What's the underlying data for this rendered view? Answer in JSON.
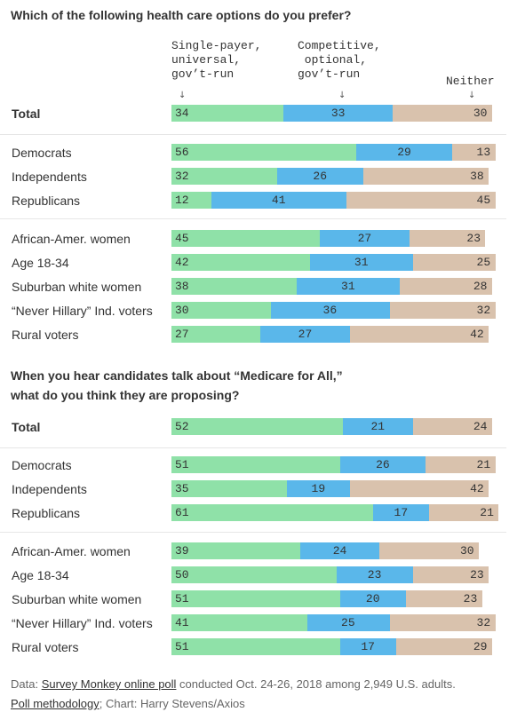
{
  "colors": {
    "single": "#8fe1a8",
    "competitive": "#5ab7ea",
    "neither": "#d9c2ad"
  },
  "headers": {
    "single": "Single-payer,\nuniversal,\ngov’t-run",
    "competitive": "Competitive,\n optional,\ngov’t-run",
    "neither": "Neither"
  },
  "footer": {
    "data_prefix": "Data: ",
    "data_link": "Survey Monkey online poll",
    "data_rest": " conducted Oct. 24-26, 2018 among 2,949 U.S. adults.",
    "methodology_link": "Poll methodology",
    "credit": "; Chart: Harry Stevens/Axios"
  },
  "chart_data": [
    {
      "type": "bar",
      "stacked": true,
      "orientation": "horizontal",
      "title": "Which of the following health care options do you prefer?",
      "series_names": [
        "Single-payer, universal, gov’t-run",
        "Competitive, optional, gov’t-run",
        "Neither"
      ],
      "groups": [
        {
          "rows": [
            {
              "label": "Total",
              "values": [
                34,
                33,
                30
              ],
              "bold": true
            }
          ]
        },
        {
          "rows": [
            {
              "label": "Democrats",
              "values": [
                56,
                29,
                13
              ]
            },
            {
              "label": "Independents",
              "values": [
                32,
                26,
                38
              ]
            },
            {
              "label": "Republicans",
              "values": [
                12,
                41,
                45
              ]
            }
          ]
        },
        {
          "rows": [
            {
              "label": "African-Amer. women",
              "values": [
                45,
                27,
                23
              ]
            },
            {
              "label": "Age 18-34",
              "values": [
                42,
                31,
                25
              ]
            },
            {
              "label": "Suburban white women",
              "values": [
                38,
                31,
                28
              ]
            },
            {
              "label": "“Never Hillary” Ind. voters",
              "values": [
                30,
                36,
                32
              ]
            },
            {
              "label": "Rural voters",
              "values": [
                27,
                27,
                42
              ]
            }
          ]
        }
      ]
    },
    {
      "type": "bar",
      "stacked": true,
      "orientation": "horizontal",
      "title": "When you hear candidates talk about “Medicare for All,”\nwhat do you think they are proposing?",
      "groups": [
        {
          "rows": [
            {
              "label": "Total",
              "values": [
                52,
                21,
                24
              ],
              "bold": true
            }
          ]
        },
        {
          "rows": [
            {
              "label": "Democrats",
              "values": [
                51,
                26,
                21
              ]
            },
            {
              "label": "Independents",
              "values": [
                35,
                19,
                42
              ]
            },
            {
              "label": "Republicans",
              "values": [
                61,
                17,
                21
              ]
            }
          ]
        },
        {
          "rows": [
            {
              "label": "African-Amer. women",
              "values": [
                39,
                24,
                30
              ]
            },
            {
              "label": "Age 18-34",
              "values": [
                50,
                23,
                23
              ]
            },
            {
              "label": "Suburban white women",
              "values": [
                51,
                20,
                23
              ]
            },
            {
              "label": "“Never Hillary” Ind. voters",
              "values": [
                41,
                25,
                32
              ]
            },
            {
              "label": "Rural voters",
              "values": [
                51,
                17,
                29
              ]
            }
          ]
        }
      ]
    }
  ]
}
